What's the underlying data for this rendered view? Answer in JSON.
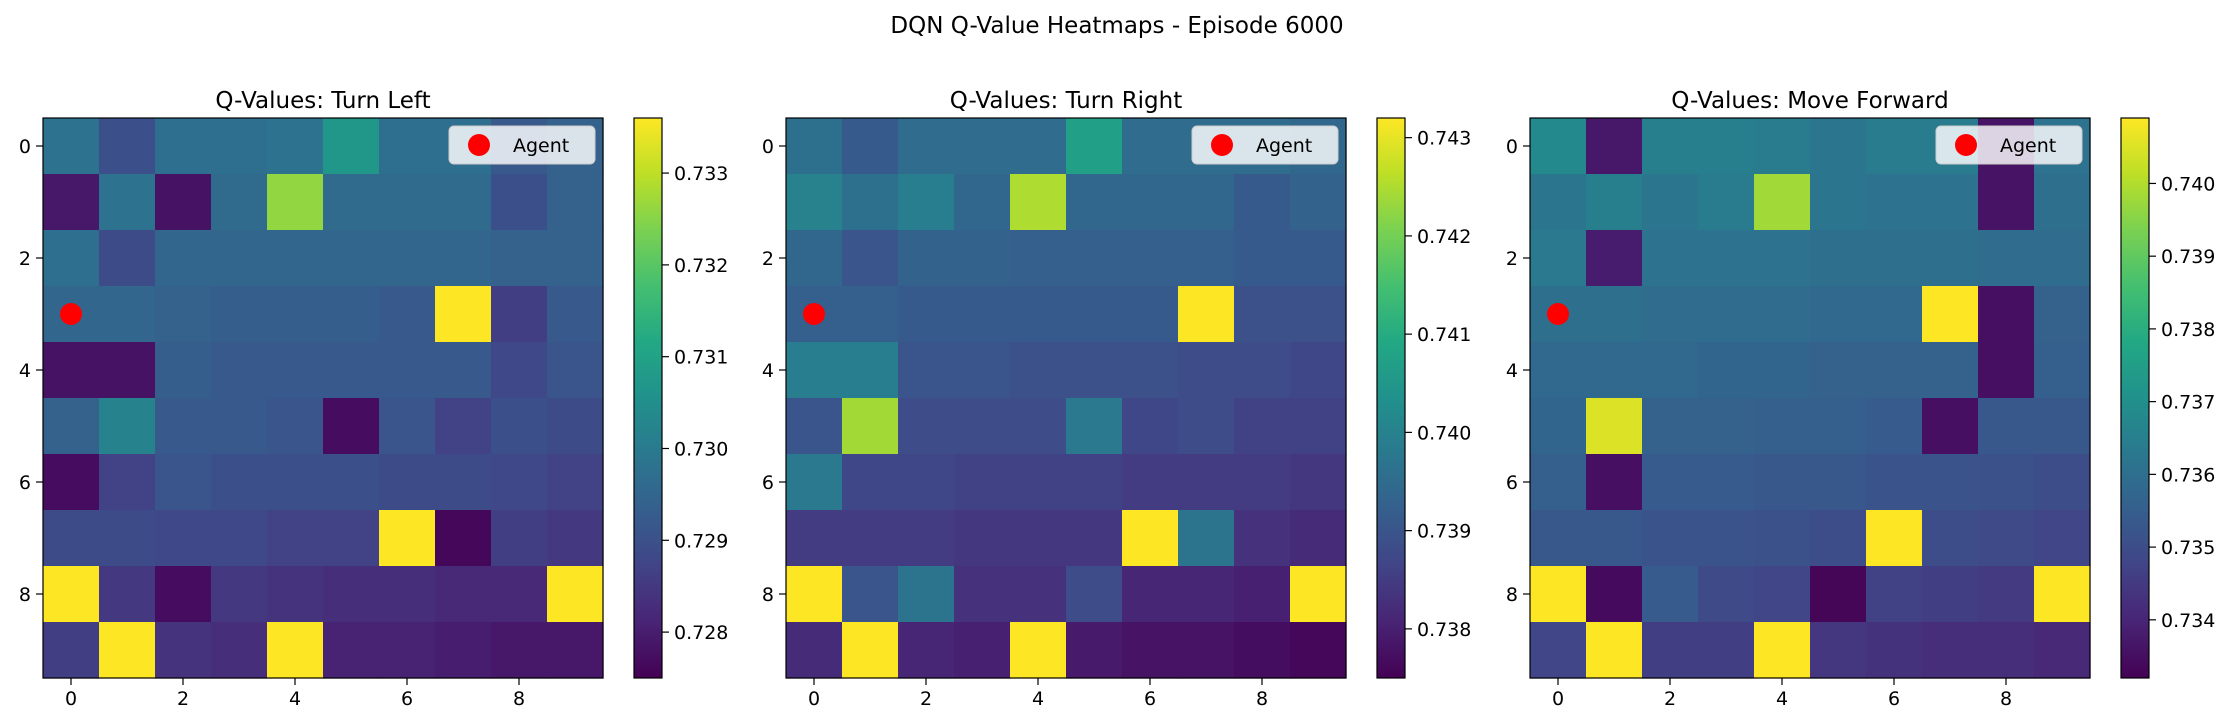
{
  "suptitle": "DQN Q-Value Heatmaps - Episode 6000",
  "legend_label": "Agent",
  "agent_color": "#ff0000",
  "colormap": "viridis",
  "chart_data": [
    {
      "type": "heatmap",
      "title": "Q-Values: Turn Left",
      "x_ticks": [
        "0",
        "2",
        "4",
        "6",
        "8"
      ],
      "y_ticks": [
        "0",
        "2",
        "4",
        "6",
        "8"
      ],
      "grid_size": [
        10,
        10
      ],
      "agent": [
        0,
        3
      ],
      "legend": "Agent",
      "legend_position": "top-right",
      "vmin": 0.7275,
      "vmax": 0.7336,
      "colorbar_ticks": [
        "0.728",
        "0.729",
        "0.730",
        "0.731",
        "0.732",
        "0.733"
      ],
      "colorbar_tick_values": [
        0.728,
        0.729,
        0.73,
        0.731,
        0.732,
        0.733
      ],
      "values": [
        [
          0.7298,
          0.729,
          0.7297,
          0.7297,
          0.7298,
          0.7307,
          0.7297,
          0.7297,
          0.7292,
          0.7294
        ],
        [
          0.7279,
          0.7298,
          0.7278,
          0.7296,
          0.7326,
          0.7296,
          0.7296,
          0.7296,
          0.729,
          0.7294
        ],
        [
          0.7297,
          0.7289,
          0.7295,
          0.7295,
          0.7295,
          0.7295,
          0.7295,
          0.7295,
          0.7294,
          0.7294
        ],
        [
          0.7295,
          0.7295,
          0.7294,
          0.7293,
          0.7293,
          0.7293,
          0.7292,
          0.7336,
          0.7286,
          0.7292
        ],
        [
          0.7278,
          0.7278,
          0.7293,
          0.7292,
          0.7292,
          0.7292,
          0.7292,
          0.7292,
          0.7288,
          0.7291
        ],
        [
          0.7294,
          0.7302,
          0.7292,
          0.7292,
          0.7291,
          0.7277,
          0.7291,
          0.7287,
          0.729,
          0.7289
        ],
        [
          0.7277,
          0.7287,
          0.7291,
          0.729,
          0.729,
          0.729,
          0.7289,
          0.7289,
          0.7288,
          0.7287
        ],
        [
          0.7289,
          0.7289,
          0.7288,
          0.7288,
          0.7287,
          0.7287,
          0.7336,
          0.7276,
          0.7286,
          0.7285
        ],
        [
          0.7336,
          0.7285,
          0.7277,
          0.7285,
          0.7284,
          0.7283,
          0.7283,
          0.7282,
          0.7282,
          0.7336
        ],
        [
          0.7286,
          0.7336,
          0.7284,
          0.7283,
          0.7336,
          0.7281,
          0.7281,
          0.728,
          0.7279,
          0.7279
        ]
      ]
    },
    {
      "type": "heatmap",
      "title": "Q-Values: Turn Right",
      "x_ticks": [
        "0",
        "2",
        "4",
        "6",
        "8"
      ],
      "y_ticks": [
        "0",
        "2",
        "4",
        "6",
        "8"
      ],
      "grid_size": [
        10,
        10
      ],
      "agent": [
        0,
        3
      ],
      "legend": "Agent",
      "legend_position": "top-right",
      "vmin": 0.7375,
      "vmax": 0.7432,
      "colorbar_ticks": [
        "0.738",
        "0.739",
        "0.740",
        "0.741",
        "0.742",
        "0.743"
      ],
      "colorbar_tick_values": [
        0.738,
        0.739,
        0.74,
        0.741,
        0.742,
        0.743
      ],
      "values": [
        [
          0.7396,
          0.7391,
          0.7395,
          0.7395,
          0.7395,
          0.7407,
          0.7395,
          0.7395,
          0.7395,
          0.7394
        ],
        [
          0.74,
          0.7396,
          0.7399,
          0.7394,
          0.7425,
          0.7394,
          0.7394,
          0.7394,
          0.7391,
          0.7393
        ],
        [
          0.7394,
          0.739,
          0.7393,
          0.7393,
          0.7392,
          0.7392,
          0.7392,
          0.7392,
          0.7391,
          0.7391
        ],
        [
          0.7392,
          0.7392,
          0.7391,
          0.7391,
          0.7391,
          0.7391,
          0.7391,
          0.7432,
          0.7389,
          0.7389
        ],
        [
          0.7399,
          0.7399,
          0.739,
          0.739,
          0.7389,
          0.7389,
          0.7389,
          0.7388,
          0.7388,
          0.7387
        ],
        [
          0.739,
          0.7424,
          0.7388,
          0.7388,
          0.7388,
          0.7398,
          0.7387,
          0.7388,
          0.7386,
          0.7386
        ],
        [
          0.7398,
          0.7387,
          0.7387,
          0.7386,
          0.7386,
          0.7386,
          0.7385,
          0.7385,
          0.7385,
          0.7384
        ],
        [
          0.7385,
          0.7385,
          0.7385,
          0.7384,
          0.7384,
          0.7384,
          0.7432,
          0.7397,
          0.7383,
          0.7382
        ],
        [
          0.7432,
          0.739,
          0.7397,
          0.7383,
          0.7383,
          0.7388,
          0.7381,
          0.7381,
          0.738,
          0.7432
        ],
        [
          0.7382,
          0.7432,
          0.7381,
          0.738,
          0.7432,
          0.7379,
          0.7378,
          0.7378,
          0.7377,
          0.7376
        ]
      ]
    },
    {
      "type": "heatmap",
      "title": "Q-Values: Move Forward",
      "x_ticks": [
        "0",
        "2",
        "4",
        "6",
        "8"
      ],
      "y_ticks": [
        "0",
        "2",
        "4",
        "6",
        "8"
      ],
      "grid_size": [
        10,
        10
      ],
      "agent": [
        0,
        3
      ],
      "legend": "Agent",
      "legend_position": "top-right",
      "vmin": 0.7332,
      "vmax": 0.7409,
      "colorbar_ticks": [
        "0.734",
        "0.735",
        "0.736",
        "0.737",
        "0.738",
        "0.739",
        "0.740"
      ],
      "colorbar_tick_values": [
        0.734,
        0.735,
        0.736,
        0.737,
        0.738,
        0.739,
        0.74
      ],
      "values": [
        [
          0.7368,
          0.7337,
          0.7365,
          0.7365,
          0.7364,
          0.7362,
          0.7364,
          0.7364,
          0.7336,
          0.7361
        ],
        [
          0.7362,
          0.7365,
          0.7362,
          0.7364,
          0.7398,
          0.7362,
          0.7361,
          0.7361,
          0.7336,
          0.736
        ],
        [
          0.7363,
          0.7338,
          0.7361,
          0.7361,
          0.7361,
          0.736,
          0.736,
          0.736,
          0.7359,
          0.7359
        ],
        [
          0.736,
          0.736,
          0.7359,
          0.7359,
          0.7359,
          0.7358,
          0.7358,
          0.7409,
          0.7335,
          0.7356
        ],
        [
          0.7358,
          0.7358,
          0.7358,
          0.7357,
          0.7357,
          0.7356,
          0.7356,
          0.7356,
          0.7335,
          0.7355
        ],
        [
          0.7357,
          0.7405,
          0.7356,
          0.7356,
          0.7355,
          0.7355,
          0.7354,
          0.7335,
          0.7353,
          0.7353
        ],
        [
          0.7355,
          0.7335,
          0.7354,
          0.7354,
          0.7353,
          0.7353,
          0.7352,
          0.7352,
          0.7351,
          0.735
        ],
        [
          0.7353,
          0.7353,
          0.7352,
          0.7352,
          0.7351,
          0.735,
          0.7409,
          0.735,
          0.7349,
          0.7348
        ],
        [
          0.7409,
          0.7334,
          0.7354,
          0.7349,
          0.7348,
          0.7333,
          0.7347,
          0.7346,
          0.7345,
          0.7409
        ],
        [
          0.7348,
          0.7409,
          0.7346,
          0.7346,
          0.7409,
          0.7344,
          0.7343,
          0.7342,
          0.7342,
          0.7341
        ]
      ]
    }
  ]
}
